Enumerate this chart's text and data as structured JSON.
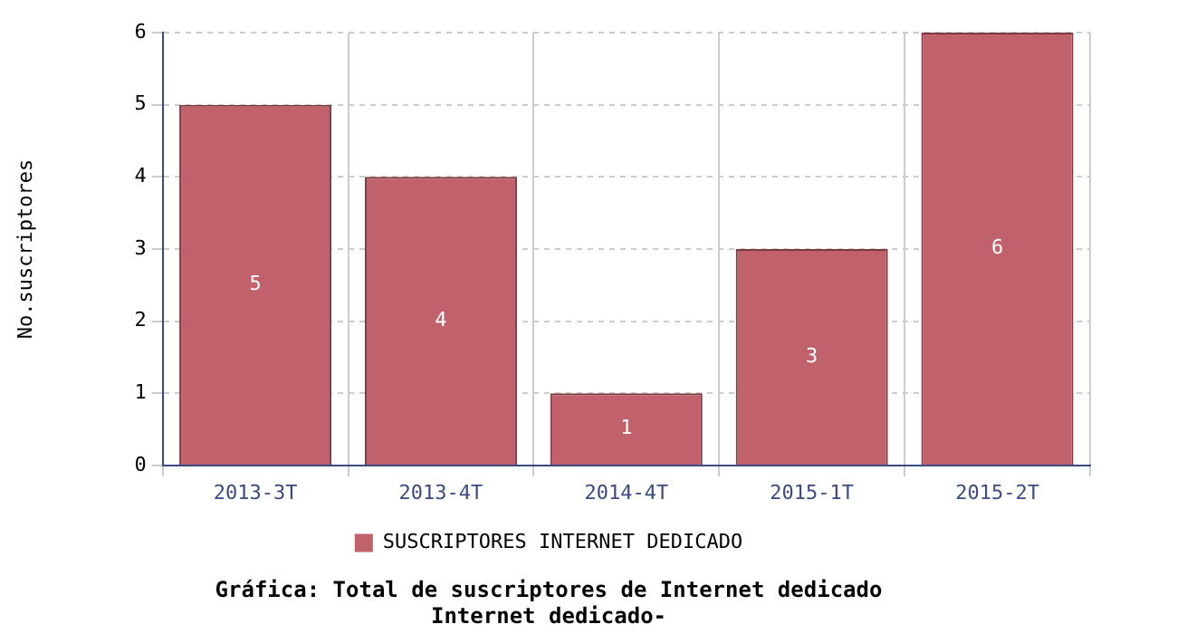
{
  "chart_data": {
    "type": "bar",
    "title": "Gráfica: Total de suscriptores de Internet dedicado",
    "subtitle": "Internet dedicado-",
    "ylabel": "No.suscriptores",
    "categories": [
      "2013-3T",
      "2013-4T",
      "2014-4T",
      "2015-1T",
      "2015-2T"
    ],
    "series": [
      {
        "name": "SUSCRIPTORES INTERNET DEDICADO",
        "color": "#c0616b",
        "values": [
          5,
          4,
          1,
          3,
          6
        ]
      }
    ],
    "ylim": [
      0,
      6
    ],
    "yticks": [
      0,
      1,
      2,
      3,
      4,
      5,
      6
    ],
    "grid": true,
    "legend": "bottom",
    "data_labels": true
  }
}
